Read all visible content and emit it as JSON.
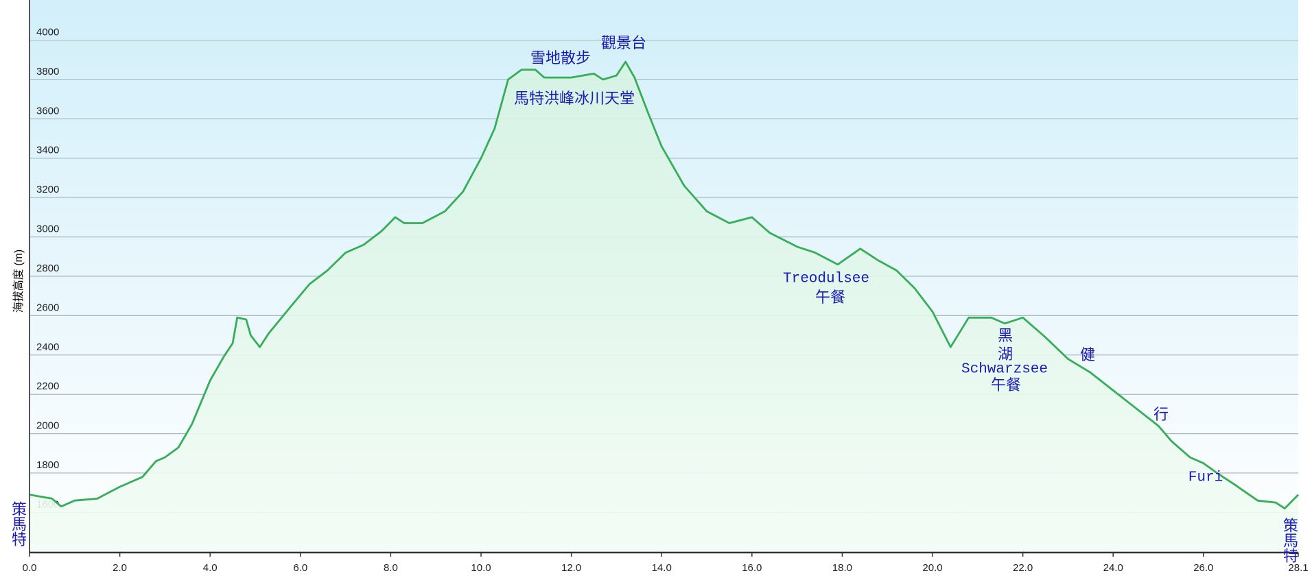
{
  "chart_data": {
    "type": "area",
    "y_label": "海拔高度 (m)",
    "color": "#36ad58",
    "grid": true,
    "xlim": [
      0,
      28.1
    ],
    "ylim": [
      1396,
      4204
    ],
    "xticks": [
      {
        "value": 0,
        "label": "0.0"
      },
      {
        "value": 2,
        "label": "2.0"
      },
      {
        "value": 4,
        "label": "4.0"
      },
      {
        "value": 6,
        "label": "6.0"
      },
      {
        "value": 8,
        "label": "8.0"
      },
      {
        "value": 10,
        "label": "10.0"
      },
      {
        "value": 12,
        "label": "12.0"
      },
      {
        "value": 14,
        "label": "14.0"
      },
      {
        "value": 16,
        "label": "16.0"
      },
      {
        "value": 18,
        "label": "18.0"
      },
      {
        "value": 20,
        "label": "20.0"
      },
      {
        "value": 22,
        "label": "22.0"
      },
      {
        "value": 24,
        "label": "24.0"
      },
      {
        "value": 26,
        "label": "26.0"
      },
      {
        "value": 28.1,
        "label": "28.1"
      }
    ],
    "yticks": [
      1600,
      1800,
      2000,
      2200,
      2400,
      2600,
      2800,
      3000,
      3200,
      3400,
      3600,
      3800,
      4000
    ],
    "x": [
      0,
      0.5,
      0.7,
      1.0,
      1.5,
      2.0,
      2.5,
      2.8,
      3.0,
      3.3,
      3.6,
      4.0,
      4.3,
      4.5,
      4.6,
      4.8,
      4.9,
      5.1,
      5.3,
      5.8,
      6.2,
      6.6,
      7.0,
      7.4,
      7.8,
      8.1,
      8.3,
      8.7,
      9.2,
      9.6,
      10.0,
      10.3,
      10.6,
      10.9,
      11.2,
      11.4,
      12.0,
      12.5,
      12.7,
      13.0,
      13.2,
      13.4,
      13.7,
      14.0,
      14.5,
      15.0,
      15.5,
      16.0,
      16.4,
      17.0,
      17.4,
      17.9,
      18.4,
      18.8,
      19.2,
      19.6,
      20.0,
      20.4,
      20.8,
      21.3,
      21.6,
      22.0,
      22.5,
      23.0,
      23.5,
      24.0,
      24.5,
      25.0,
      25.3,
      25.7,
      26.0,
      26.3,
      26.7,
      27.2,
      27.6,
      27.8,
      28.1
    ],
    "values": [
      1690,
      1670,
      1630,
      1660,
      1670,
      1730,
      1780,
      1860,
      1880,
      1930,
      2050,
      2270,
      2390,
      2460,
      2590,
      2580,
      2500,
      2440,
      2510,
      2650,
      2760,
      2830,
      2920,
      2960,
      3030,
      3100,
      3070,
      3070,
      3130,
      3230,
      3400,
      3550,
      3800,
      3850,
      3850,
      3810,
      3810,
      3830,
      3800,
      3820,
      3890,
      3810,
      3630,
      3460,
      3260,
      3130,
      3070,
      3100,
      3020,
      2950,
      2920,
      2860,
      2940,
      2880,
      2830,
      2740,
      2620,
      2440,
      2590,
      2590,
      2560,
      2590,
      2490,
      2380,
      2310,
      2220,
      2130,
      2040,
      1960,
      1880,
      1850,
      1800,
      1740,
      1660,
      1650,
      1620,
      1690
    ],
    "annotations": [
      "觀景台",
      "雪地散步",
      "馬特洪峰冰川天堂",
      "Treodulsee",
      "午餐",
      "黑",
      "湖",
      "Schwarzsee",
      "午餐",
      "健",
      "行",
      "Furi",
      "策馬特",
      "策馬特"
    ]
  }
}
